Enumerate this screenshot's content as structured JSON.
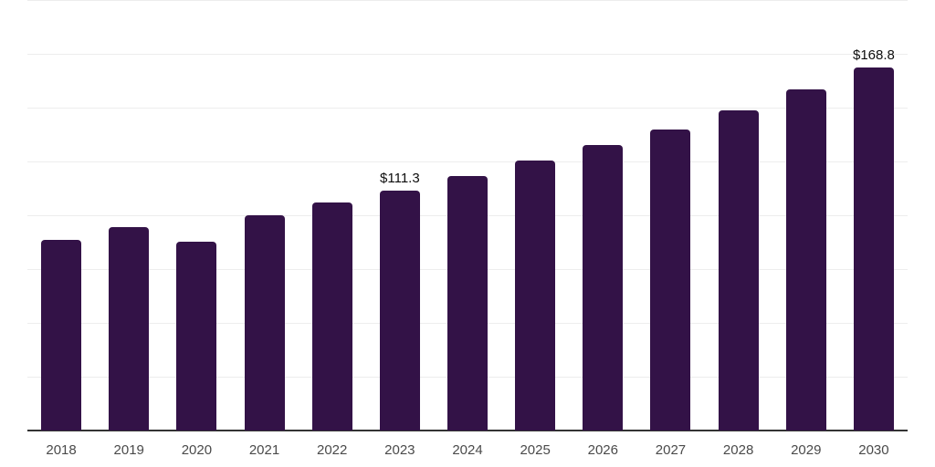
{
  "chart_data": {
    "type": "bar",
    "title": "",
    "xlabel": "",
    "ylabel": "",
    "categories": [
      "2018",
      "2019",
      "2020",
      "2021",
      "2022",
      "2023",
      "2024",
      "2025",
      "2026",
      "2027",
      "2028",
      "2029",
      "2030"
    ],
    "values": [
      88.5,
      94.4,
      87.6,
      100.0,
      105.9,
      111.3,
      118.1,
      125.3,
      132.6,
      139.8,
      148.8,
      158.5,
      168.8
    ],
    "data_labels": {
      "2023": "$111.3",
      "2030": "$168.8"
    },
    "ylim": [
      0,
      200
    ],
    "gridline_step": 25,
    "grid": "horizontal-only",
    "legend": "none",
    "bar_color": "#331247",
    "axis_line_color": "#333333",
    "gridline_color": "#ededed",
    "x_label_color": "#4a4a4a",
    "value_label_color": "#0d0d0d"
  }
}
